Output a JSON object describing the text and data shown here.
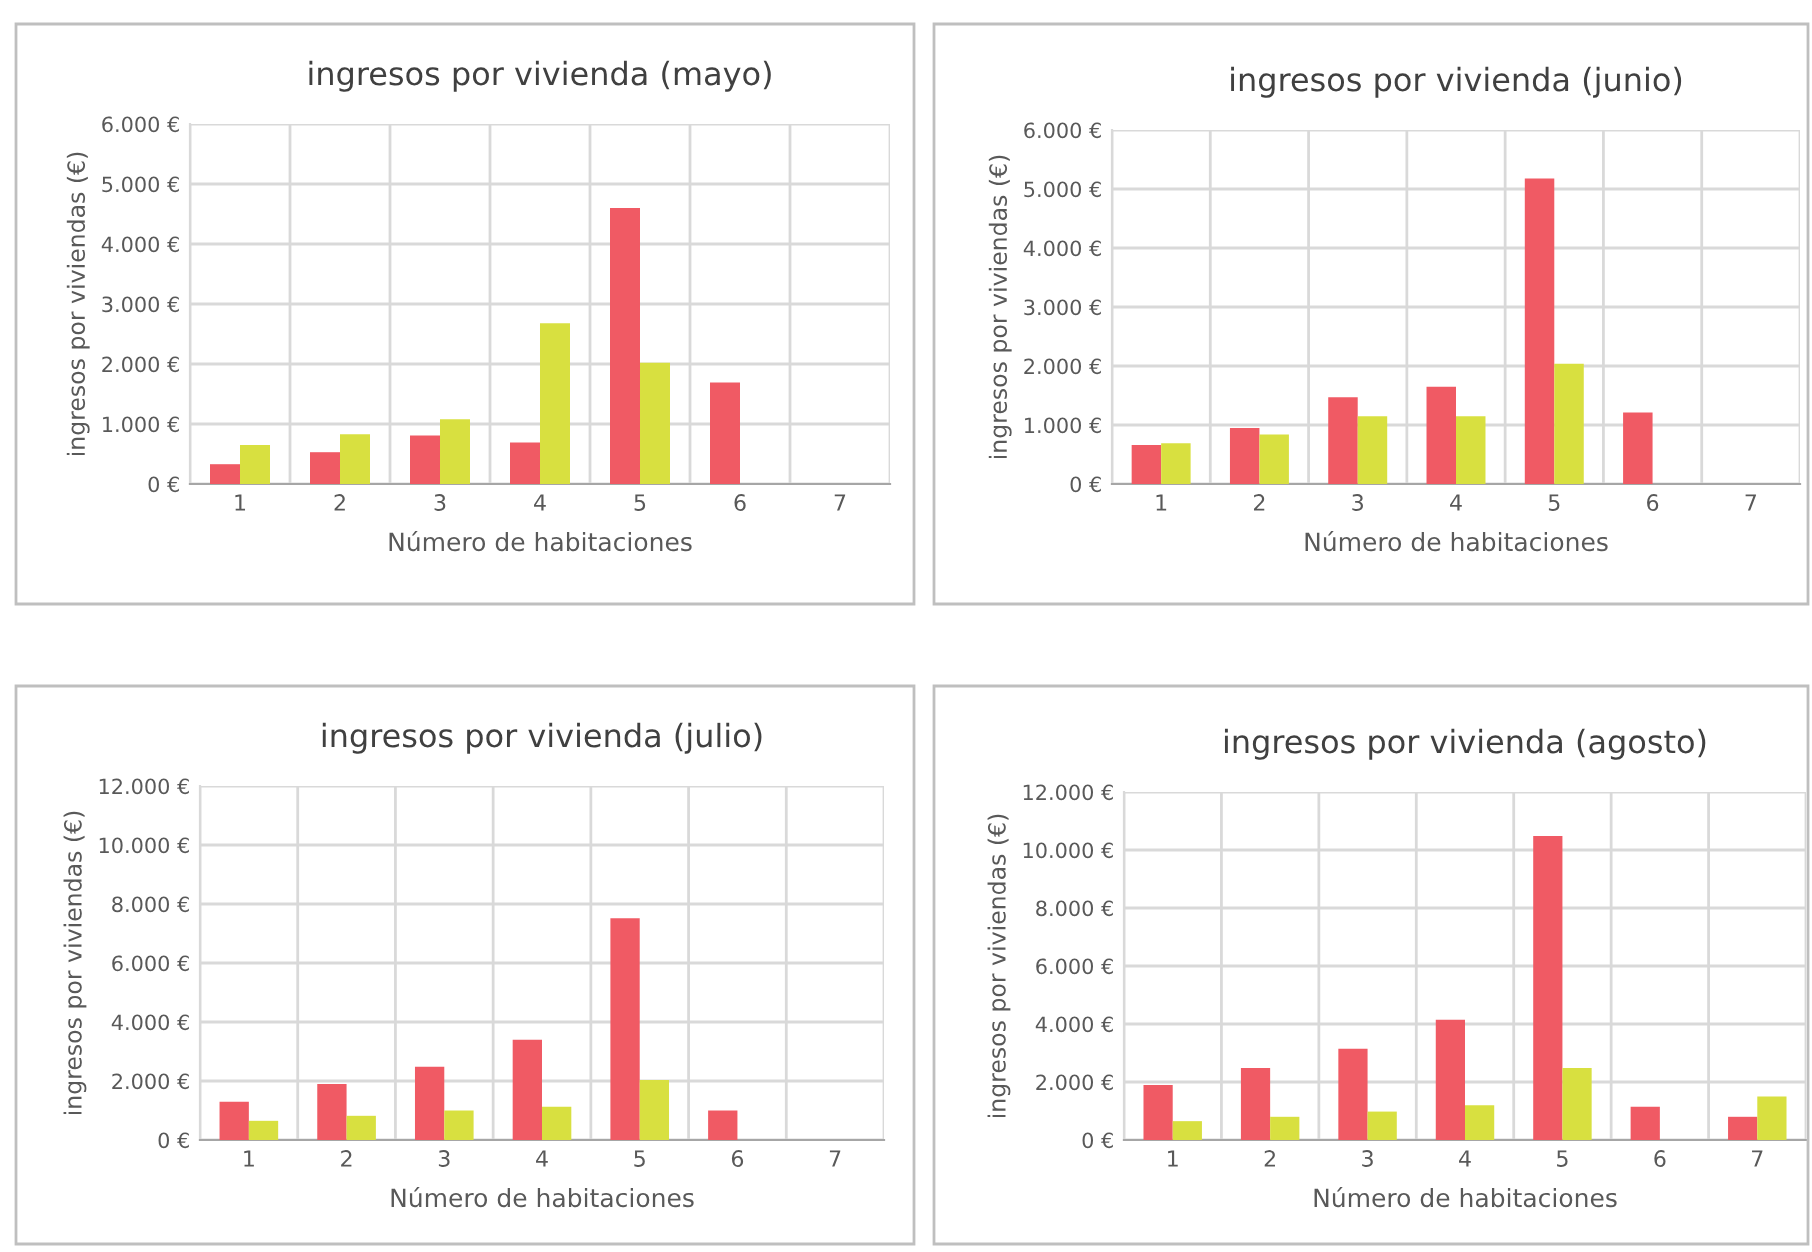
{
  "chart_data": [
    {
      "type": "bar",
      "title": "ingresos por vivienda (mayo)",
      "xlabel": "Número de habitaciones",
      "ylabel": "ingresos por viviendas (€)",
      "categories": [
        "1",
        "2",
        "3",
        "4",
        "5",
        "6",
        "7"
      ],
      "ylim": [
        0,
        6000
      ],
      "yticks": [
        {
          "value": 0,
          "label": "0 €"
        },
        {
          "value": 1000,
          "label": "1.000 €"
        },
        {
          "value": 2000,
          "label": "2.000 €"
        },
        {
          "value": 3000,
          "label": "3.000 €"
        },
        {
          "value": 4000,
          "label": "4.000 €"
        },
        {
          "value": 5000,
          "label": "5.000 €"
        },
        {
          "value": 6000,
          "label": "6.000 €"
        }
      ],
      "grid": true,
      "series": [
        {
          "color": "#f05a64",
          "values": [
            330,
            530,
            810,
            690,
            4600,
            1690,
            null
          ]
        },
        {
          "color": "#d8e040",
          "values": [
            650,
            830,
            1080,
            2680,
            2020,
            null,
            null
          ]
        }
      ]
    },
    {
      "type": "bar",
      "title": "ingresos por vivienda (junio)",
      "xlabel": "Número de habitaciones",
      "ylabel": "ingresos por viviendas (€)",
      "categories": [
        "1",
        "2",
        "3",
        "4",
        "5",
        "6",
        "7"
      ],
      "ylim": [
        0,
        6000
      ],
      "yticks": [
        {
          "value": 0,
          "label": "0 €"
        },
        {
          "value": 1000,
          "label": "1.000 €"
        },
        {
          "value": 2000,
          "label": "2.000 €"
        },
        {
          "value": 3000,
          "label": "3.000 €"
        },
        {
          "value": 4000,
          "label": "4.000 €"
        },
        {
          "value": 5000,
          "label": "5.000 €"
        },
        {
          "value": 6000,
          "label": "6.000 €"
        }
      ],
      "grid": true,
      "series": [
        {
          "color": "#f05a64",
          "values": [
            660,
            950,
            1470,
            1650,
            5180,
            1210,
            null
          ]
        },
        {
          "color": "#d8e040",
          "values": [
            690,
            840,
            1150,
            1150,
            2040,
            null,
            null
          ]
        }
      ]
    },
    {
      "type": "bar",
      "title": "ingresos por vivienda (julio)",
      "xlabel": "Número de habitaciones",
      "ylabel": "ingresos por viviendas (€)",
      "categories": [
        "1",
        "2",
        "3",
        "4",
        "5",
        "6",
        "7"
      ],
      "ylim": [
        0,
        12000
      ],
      "yticks": [
        {
          "value": 0,
          "label": "0 €"
        },
        {
          "value": 2000,
          "label": "2.000 €"
        },
        {
          "value": 4000,
          "label": "4.000 €"
        },
        {
          "value": 6000,
          "label": "6.000 €"
        },
        {
          "value": 8000,
          "label": "8.000 €"
        },
        {
          "value": 10000,
          "label": "10.000 €"
        },
        {
          "value": 12000,
          "label": "12.000 €"
        }
      ],
      "grid": true,
      "series": [
        {
          "color": "#f05a64",
          "values": [
            1300,
            1900,
            2480,
            3400,
            7520,
            1000,
            null
          ]
        },
        {
          "color": "#d8e040",
          "values": [
            650,
            820,
            1000,
            1130,
            2030,
            null,
            null
          ]
        }
      ]
    },
    {
      "type": "bar",
      "title": "ingresos por vivienda (agosto)",
      "xlabel": "Número de habitaciones",
      "ylabel": "ingresos por viviendas (€)",
      "categories": [
        "1",
        "2",
        "3",
        "4",
        "5",
        "6",
        "7"
      ],
      "ylim": [
        0,
        12000
      ],
      "yticks": [
        {
          "value": 0,
          "label": "0 €"
        },
        {
          "value": 2000,
          "label": "2.000 €"
        },
        {
          "value": 4000,
          "label": "4.000 €"
        },
        {
          "value": 6000,
          "label": "6.000 €"
        },
        {
          "value": 8000,
          "label": "8.000 €"
        },
        {
          "value": 10000,
          "label": "10.000 €"
        },
        {
          "value": 12000,
          "label": "12.000 €"
        }
      ],
      "grid": true,
      "series": [
        {
          "color": "#f05a64",
          "values": [
            1900,
            2480,
            3150,
            4150,
            10480,
            1150,
            800
          ]
        },
        {
          "color": "#d8e040",
          "values": [
            650,
            800,
            980,
            1200,
            2480,
            null,
            1500
          ]
        }
      ]
    }
  ]
}
